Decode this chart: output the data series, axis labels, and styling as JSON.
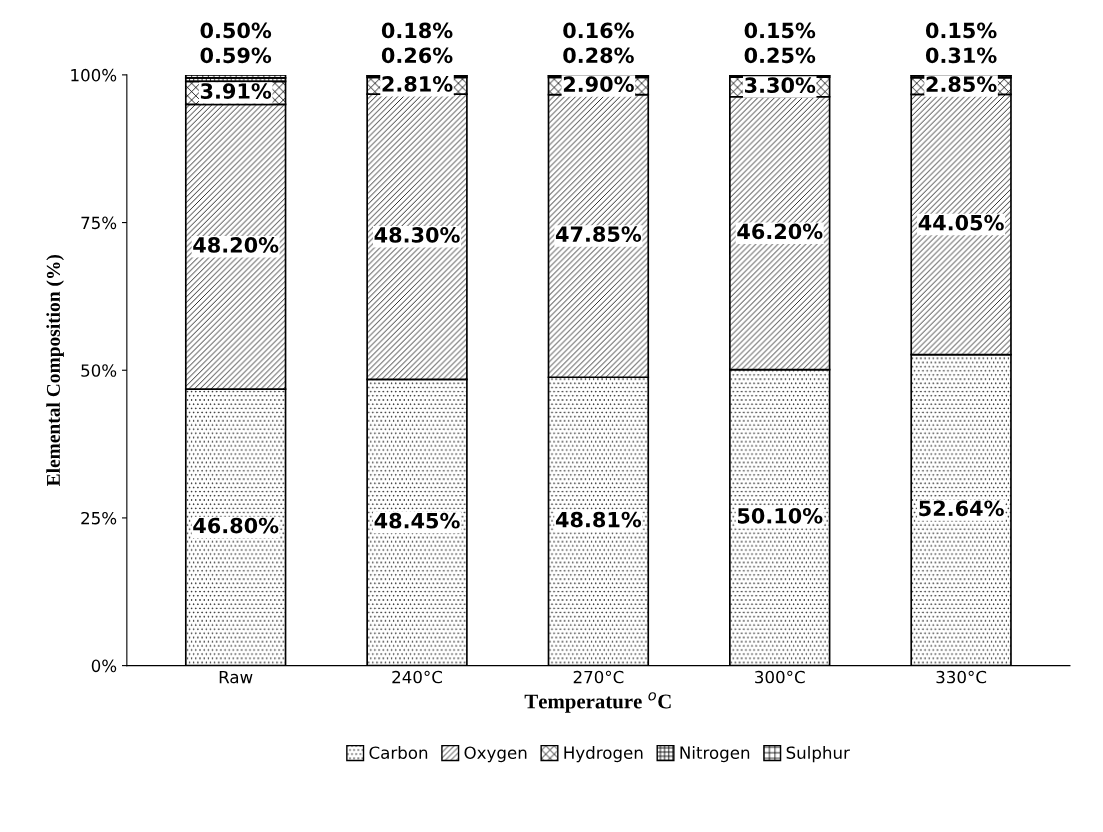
{
  "chart_data": {
    "type": "bar",
    "stacked": true,
    "categories": [
      "Raw",
      "240°C",
      "270°C",
      "300°C",
      "330°C"
    ],
    "xlabel": "Temperature $^{o}$C",
    "ylabel": "Elemental Composition (%)",
    "ylim": [
      0,
      100
    ],
    "yticks": [
      {
        "value": 0,
        "label": "0%"
      },
      {
        "value": 25,
        "label": "25%"
      },
      {
        "value": 50,
        "label": "50%"
      },
      {
        "value": 75,
        "label": "75%"
      },
      {
        "value": 100,
        "label": "100%"
      }
    ],
    "grid": false,
    "legend": "bottom",
    "series": [
      {
        "name": "Carbon",
        "color": "#000000",
        "values": [
          46.8,
          48.45,
          48.81,
          50.1,
          52.64
        ],
        "value_labels": [
          "46.80%",
          "48.45%",
          "48.81%",
          "50.10%",
          "52.64%"
        ]
      },
      {
        "name": "Oxygen",
        "color": "#000000",
        "values": [
          48.2,
          48.3,
          47.85,
          46.2,
          44.05
        ],
        "value_labels": [
          "48.20%",
          "48.30%",
          "47.85%",
          "46.20%",
          "44.05%"
        ]
      },
      {
        "name": "Hydrogen",
        "color": "#000000",
        "values": [
          3.91,
          2.81,
          2.9,
          3.3,
          2.85
        ],
        "value_labels": [
          "3.91%",
          "2.81%",
          "2.90%",
          "3.30%",
          "2.85%"
        ]
      },
      {
        "name": "Nitrogen",
        "color": "#000000",
        "values": [
          0.59,
          0.26,
          0.28,
          0.25,
          0.31
        ],
        "value_labels": [
          "0.59%",
          "0.26%",
          "0.28%",
          "0.25%",
          "0.31%"
        ]
      },
      {
        "name": "Sulphur",
        "color": "#000000",
        "values": [
          0.5,
          0.18,
          0.16,
          0.15,
          0.15
        ],
        "value_labels": [
          "0.50%",
          "0.18%",
          "0.16%",
          "0.15%",
          "0.15%"
        ]
      }
    ]
  }
}
